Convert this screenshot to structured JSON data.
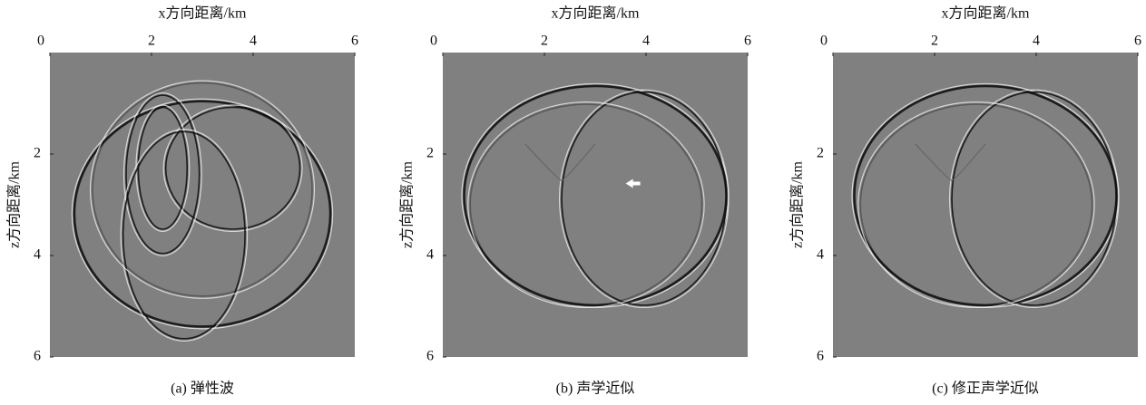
{
  "chart_data": [
    {
      "type": "image",
      "xlabel": "x方向距离/km",
      "ylabel": "z方向距离/km",
      "caption": "(a) 弹性波",
      "xlim": [
        0,
        6
      ],
      "ylim": [
        0,
        6
      ],
      "xticks": [
        0,
        2,
        4,
        6
      ],
      "yticks": [
        2,
        4,
        6
      ],
      "invert_y": true
    },
    {
      "type": "image",
      "xlabel": "x方向距离/km",
      "ylabel": "z方向距离/km",
      "caption": "(b) 声学近似",
      "xlim": [
        0,
        6
      ],
      "ylim": [
        0,
        6
      ],
      "xticks": [
        0,
        2,
        4,
        6
      ],
      "yticks": [
        2,
        4,
        6
      ],
      "invert_y": true
    },
    {
      "type": "image",
      "xlabel": "x方向距离/km",
      "ylabel": "z方向距离/km",
      "caption": "(c) 修正声学近似",
      "xlim": [
        0,
        6
      ],
      "ylim": [
        0,
        6
      ],
      "xticks": [
        0,
        2,
        4,
        6
      ],
      "yticks": [
        2,
        4,
        6
      ],
      "invert_y": true
    }
  ]
}
